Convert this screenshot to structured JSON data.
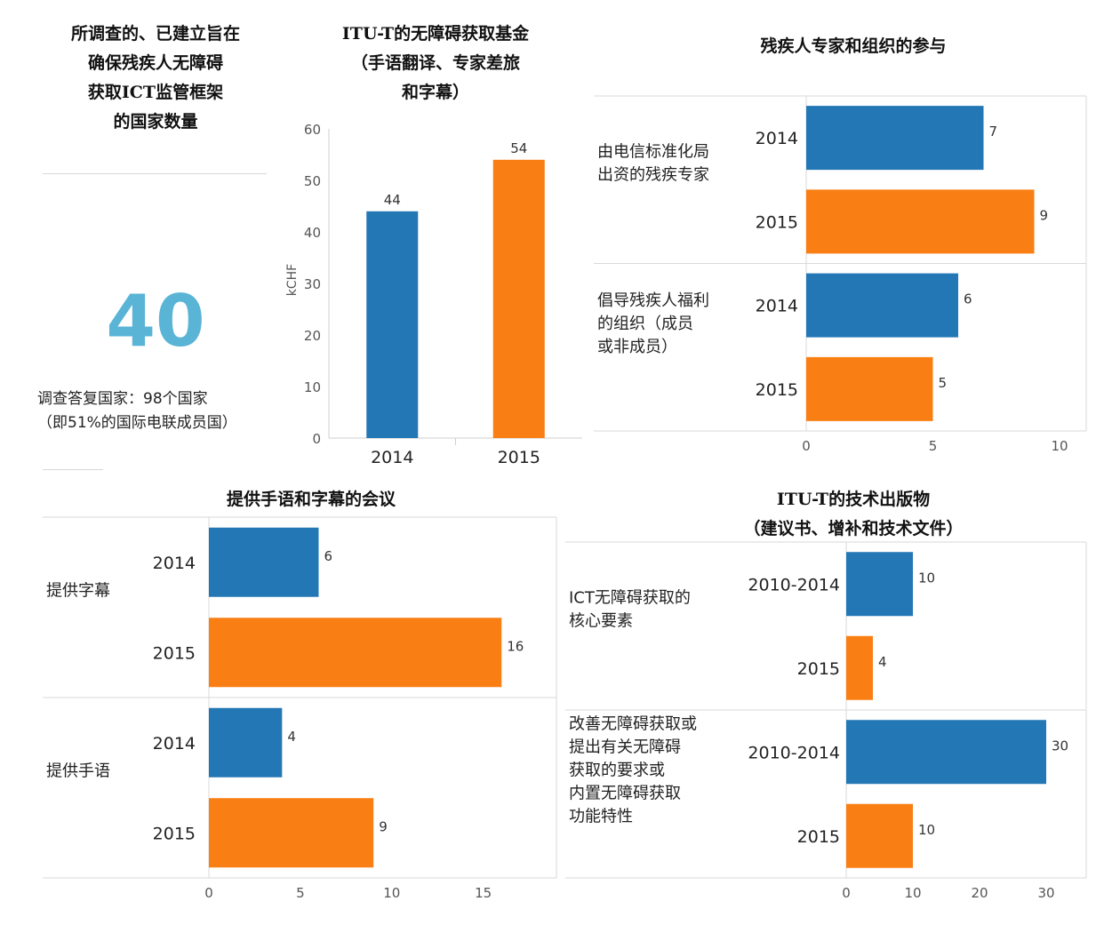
{
  "colors": {
    "blue": "#2377b5",
    "orange": "#f97f14",
    "big_number": "#5ab4d6"
  },
  "stat": {
    "title_lines": [
      "所调查的、已建立旨在",
      "确保残疾人无障碍",
      "获取ICT监管框架",
      "的国家数量"
    ],
    "value": "40",
    "note_lines": [
      "调查答复国家：98个国家",
      "（即51%的国际电联成员国）"
    ]
  },
  "chart_data": [
    {
      "id": "fund",
      "type": "bar",
      "title_lines": [
        "ITU-T的无障碍获取基金",
        "（手语翻译、专家差旅",
        "和字幕）"
      ],
      "ylabel": "kCHF",
      "ylim": [
        0,
        60
      ],
      "yticks": [
        0,
        10,
        20,
        30,
        40,
        50,
        60
      ],
      "categories": [
        "2014",
        "2015"
      ],
      "values": [
        44,
        54
      ]
    },
    {
      "id": "participation",
      "type": "bar",
      "orientation": "horizontal",
      "title": "残疾人专家和组织的参与",
      "xlim": [
        0,
        10
      ],
      "xticks": [
        0,
        5,
        10
      ],
      "groups": [
        {
          "label_lines": [
            "由电信标准化局",
            "出资的残疾专家"
          ],
          "bars": [
            {
              "year": "2014",
              "value": 7
            },
            {
              "year": "2015",
              "value": 9
            }
          ]
        },
        {
          "label_lines": [
            "倡导残疾人福利",
            "的组织（成员",
            "或非成员）"
          ],
          "bars": [
            {
              "year": "2014",
              "value": 6
            },
            {
              "year": "2015",
              "value": 5
            }
          ]
        }
      ]
    },
    {
      "id": "meetings",
      "type": "bar",
      "orientation": "horizontal",
      "title": "提供手语和字幕的会议",
      "xlim": [
        0,
        19
      ],
      "xticks": [
        0,
        5,
        10,
        15
      ],
      "groups": [
        {
          "label_lines": [
            "提供字幕"
          ],
          "bars": [
            {
              "year": "2014",
              "value": 6
            },
            {
              "year": "2015",
              "value": 16
            }
          ]
        },
        {
          "label_lines": [
            "提供手语"
          ],
          "bars": [
            {
              "year": "2014",
              "value": 4
            },
            {
              "year": "2015",
              "value": 9
            }
          ]
        }
      ]
    },
    {
      "id": "publications",
      "type": "bar",
      "orientation": "horizontal",
      "title_lines": [
        "ITU-T的技术出版物",
        "（建议书、增补和技术文件）"
      ],
      "xlim": [
        0,
        36
      ],
      "xticks": [
        0,
        10,
        20,
        30
      ],
      "groups": [
        {
          "label_lines": [
            "ICT无障碍获取的",
            "核心要素"
          ],
          "bars": [
            {
              "year": "2010-2014",
              "value": 10
            },
            {
              "year": "2015",
              "value": 4
            }
          ]
        },
        {
          "label_lines": [
            "改善无障碍获取或",
            "提出有关无障碍",
            "获取的要求或",
            "内置无障碍获取",
            "功能特性"
          ],
          "bars": [
            {
              "year": "2010-2014",
              "value": 30
            },
            {
              "year": "2015",
              "value": 10
            }
          ]
        }
      ]
    }
  ]
}
